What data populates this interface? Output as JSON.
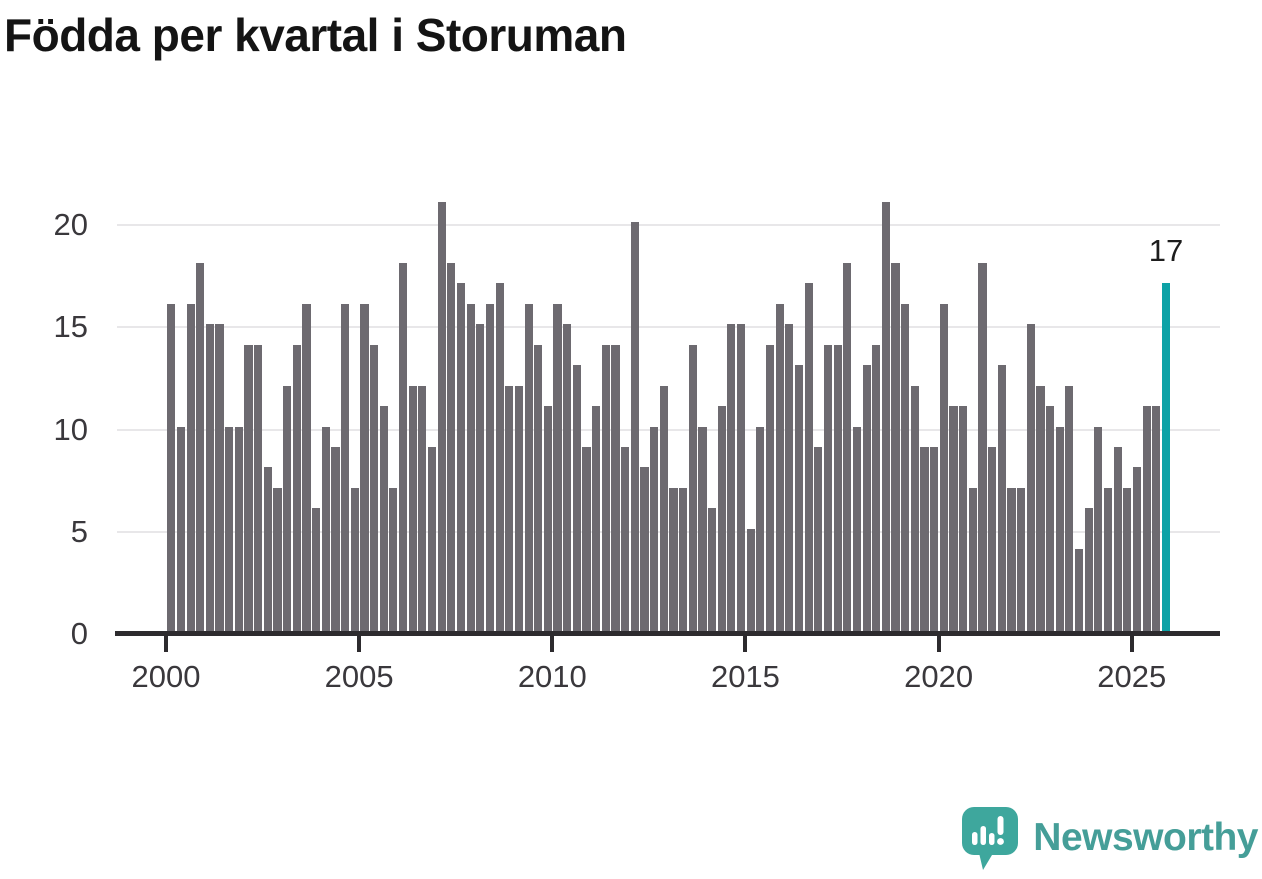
{
  "title": "Födda per kvartal i Storuman",
  "footer": {
    "brand": "Newsworthy",
    "logo_icon": "speech-bubble-bar-chart"
  },
  "colors": {
    "bar": "#6d6a70",
    "highlight": "#0da2a6",
    "gridline": "#e8e7e9",
    "axis": "#2d2b2e",
    "axis_label": "#3a383c",
    "title": "#141414",
    "logo_bubble": "#3ea79d",
    "logo_wordmark": "#459e98"
  },
  "chart_data": {
    "type": "bar",
    "title": "Födda per kvartal i Storuman",
    "xlabel": "",
    "ylabel": "",
    "period": "quarterly",
    "start_period": "2000-Q1",
    "end_period": "2025-Q4",
    "ylim": [
      0,
      21.5
    ],
    "yticks": [
      0,
      5,
      10,
      15,
      20
    ],
    "xticks": [
      2000,
      2005,
      2010,
      2015,
      2020,
      2025
    ],
    "grid": true,
    "legend": "none",
    "highlight_last_bar": true,
    "last_bar_label": "17",
    "series_by_year": [
      {
        "year": 2000,
        "quarters": [
          16,
          10,
          16,
          18
        ]
      },
      {
        "year": 2001,
        "quarters": [
          15,
          15,
          10,
          10
        ]
      },
      {
        "year": 2002,
        "quarters": [
          14,
          14,
          8,
          7
        ]
      },
      {
        "year": 2003,
        "quarters": [
          12,
          14,
          16,
          6
        ]
      },
      {
        "year": 2004,
        "quarters": [
          10,
          9,
          16,
          7
        ]
      },
      {
        "year": 2005,
        "quarters": [
          16,
          14,
          11,
          7
        ]
      },
      {
        "year": 2006,
        "quarters": [
          18,
          12,
          12,
          9
        ]
      },
      {
        "year": 2007,
        "quarters": [
          21,
          18,
          17,
          16
        ]
      },
      {
        "year": 2008,
        "quarters": [
          15,
          16,
          17,
          12
        ]
      },
      {
        "year": 2009,
        "quarters": [
          12,
          16,
          14,
          11
        ]
      },
      {
        "year": 2010,
        "quarters": [
          16,
          15,
          13,
          9
        ]
      },
      {
        "year": 2011,
        "quarters": [
          11,
          14,
          14,
          9
        ]
      },
      {
        "year": 2012,
        "quarters": [
          20,
          8,
          10,
          12
        ]
      },
      {
        "year": 2013,
        "quarters": [
          7,
          7,
          14,
          10
        ]
      },
      {
        "year": 2014,
        "quarters": [
          6,
          11,
          15,
          15
        ]
      },
      {
        "year": 2015,
        "quarters": [
          5,
          10,
          14,
          16
        ]
      },
      {
        "year": 2016,
        "quarters": [
          15,
          13,
          17,
          9
        ]
      },
      {
        "year": 2017,
        "quarters": [
          14,
          14,
          18,
          10
        ]
      },
      {
        "year": 2018,
        "quarters": [
          13,
          14,
          21,
          18
        ]
      },
      {
        "year": 2019,
        "quarters": [
          16,
          12,
          9,
          9
        ]
      },
      {
        "year": 2020,
        "quarters": [
          16,
          11,
          11,
          7
        ]
      },
      {
        "year": 2021,
        "quarters": [
          18,
          9,
          13,
          7
        ]
      },
      {
        "year": 2022,
        "quarters": [
          7,
          15,
          12,
          11
        ]
      },
      {
        "year": 2023,
        "quarters": [
          10,
          12,
          4,
          6
        ]
      },
      {
        "year": 2024,
        "quarters": [
          10,
          7,
          9,
          7
        ]
      },
      {
        "year": 2025,
        "quarters": [
          8,
          11,
          11,
          17
        ]
      }
    ]
  }
}
